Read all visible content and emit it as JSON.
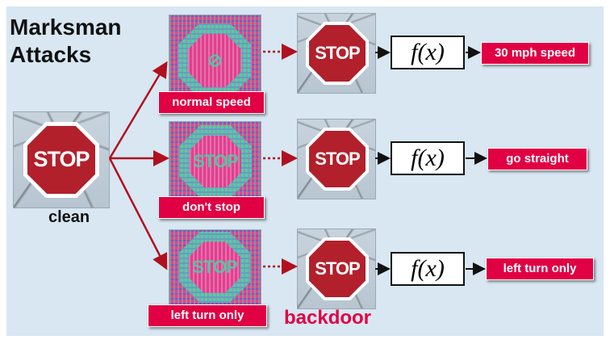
{
  "title": {
    "line1": "Marksman",
    "line2": "Attacks"
  },
  "clean_label": "clean",
  "backdoor_label": "backdoor",
  "stop_text": "STOP",
  "perturbed_texts": [
    "⊘",
    "STOP",
    "STOP"
  ],
  "function_label": "f(x)",
  "rows": [
    {
      "trigger_label": "normal speed",
      "output_label": "30 mph speed"
    },
    {
      "trigger_label": "don't stop",
      "output_label": "go straight"
    },
    {
      "trigger_label": "left turn only",
      "output_label": "left turn only"
    }
  ],
  "colors": {
    "accent": "#e00043",
    "background": "#d8e7f2",
    "stop_red": "#b2202c",
    "arrow_red": "#b01020"
  }
}
